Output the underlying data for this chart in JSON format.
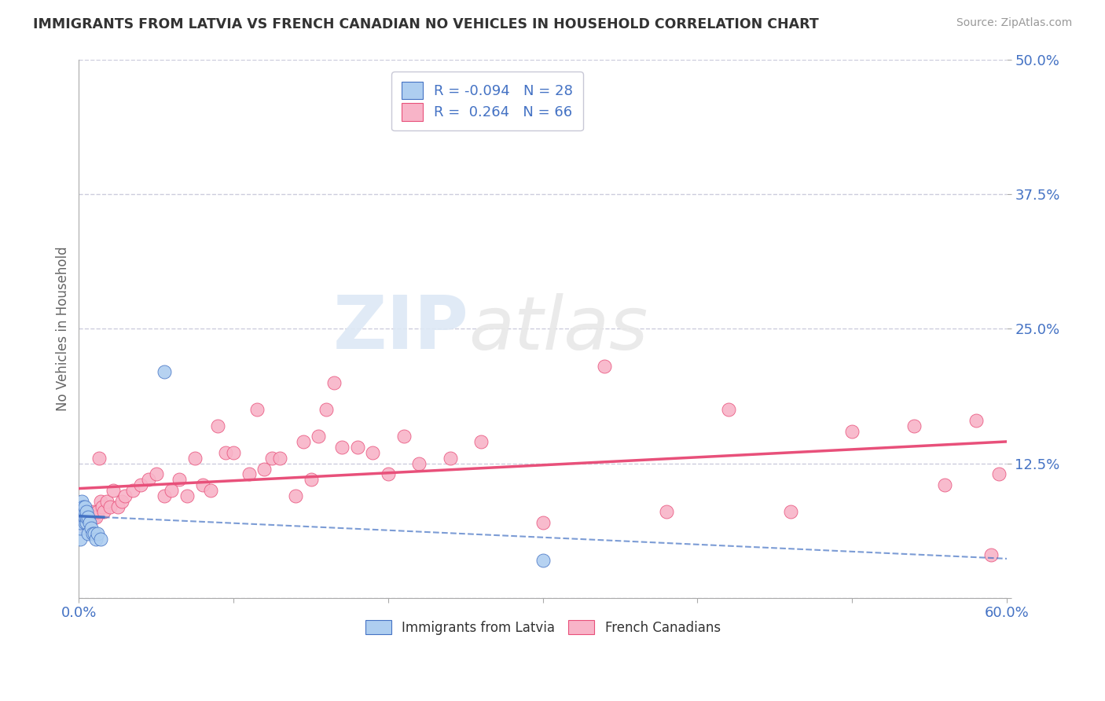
{
  "title": "IMMIGRANTS FROM LATVIA VS FRENCH CANADIAN NO VEHICLES IN HOUSEHOLD CORRELATION CHART",
  "source": "Source: ZipAtlas.com",
  "ylabel": "No Vehicles in Household",
  "watermark": "ZIP",
  "watermark2": "atlas",
  "series1_label": "Immigrants from Latvia",
  "series2_label": "French Canadians",
  "series1_color": "#aecef0",
  "series2_color": "#f8b4c8",
  "series1_edge_color": "#4472c4",
  "series2_edge_color": "#e8507a",
  "series1_line_color": "#4472c4",
  "series2_line_color": "#e8507a",
  "series1_R": -0.094,
  "series1_N": 28,
  "series2_R": 0.264,
  "series2_N": 66,
  "xlim": [
    0.0,
    0.6
  ],
  "ylim": [
    0.0,
    0.5
  ],
  "background_color": "#ffffff",
  "grid_color": "#ccccdd",
  "title_color": "#333333",
  "source_color": "#999999",
  "tick_color": "#4472c4",
  "series1_x": [
    0.001,
    0.001,
    0.001,
    0.002,
    0.002,
    0.002,
    0.002,
    0.003,
    0.003,
    0.003,
    0.004,
    0.004,
    0.004,
    0.004,
    0.005,
    0.005,
    0.005,
    0.006,
    0.006,
    0.007,
    0.008,
    0.009,
    0.01,
    0.011,
    0.012,
    0.014,
    0.055,
    0.3
  ],
  "series1_y": [
    0.055,
    0.065,
    0.07,
    0.075,
    0.08,
    0.085,
    0.09,
    0.075,
    0.08,
    0.085,
    0.07,
    0.075,
    0.08,
    0.085,
    0.07,
    0.075,
    0.08,
    0.06,
    0.075,
    0.07,
    0.065,
    0.06,
    0.06,
    0.055,
    0.06,
    0.055,
    0.21,
    0.035
  ],
  "series2_x": [
    0.001,
    0.002,
    0.003,
    0.004,
    0.005,
    0.006,
    0.007,
    0.008,
    0.009,
    0.01,
    0.011,
    0.012,
    0.013,
    0.014,
    0.015,
    0.016,
    0.018,
    0.02,
    0.022,
    0.025,
    0.028,
    0.03,
    0.035,
    0.04,
    0.045,
    0.05,
    0.055,
    0.06,
    0.065,
    0.07,
    0.075,
    0.08,
    0.085,
    0.09,
    0.095,
    0.1,
    0.11,
    0.115,
    0.12,
    0.125,
    0.13,
    0.14,
    0.145,
    0.15,
    0.155,
    0.16,
    0.165,
    0.17,
    0.18,
    0.19,
    0.2,
    0.21,
    0.22,
    0.24,
    0.26,
    0.3,
    0.34,
    0.38,
    0.42,
    0.46,
    0.5,
    0.54,
    0.56,
    0.58,
    0.59,
    0.595
  ],
  "series2_y": [
    0.065,
    0.07,
    0.075,
    0.075,
    0.08,
    0.075,
    0.08,
    0.075,
    0.08,
    0.075,
    0.075,
    0.08,
    0.13,
    0.09,
    0.085,
    0.08,
    0.09,
    0.085,
    0.1,
    0.085,
    0.09,
    0.095,
    0.1,
    0.105,
    0.11,
    0.115,
    0.095,
    0.1,
    0.11,
    0.095,
    0.13,
    0.105,
    0.1,
    0.16,
    0.135,
    0.135,
    0.115,
    0.175,
    0.12,
    0.13,
    0.13,
    0.095,
    0.145,
    0.11,
    0.15,
    0.175,
    0.2,
    0.14,
    0.14,
    0.135,
    0.115,
    0.15,
    0.125,
    0.13,
    0.145,
    0.07,
    0.215,
    0.08,
    0.175,
    0.08,
    0.155,
    0.16,
    0.105,
    0.165,
    0.04,
    0.115
  ]
}
